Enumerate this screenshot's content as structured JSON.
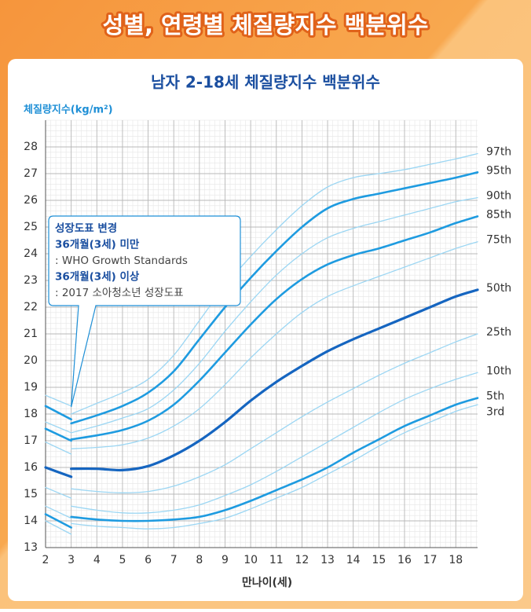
{
  "chart_data": {
    "type": "line",
    "banner": "성별, 연령별 체질량지수 백분위수",
    "title": "남자 2-18세 체질량지수 백분위수",
    "y_label": "체질량지수(kg/m²)",
    "x_label": "만나이(세)",
    "annotation": [
      {
        "text": "성장도표 변경",
        "bold": true
      },
      {
        "text": "36개월(3세) 미만",
        "bold": true
      },
      {
        "text": ": WHO Growth Standards",
        "bold": false
      },
      {
        "text": "36개월(3세) 이상",
        "bold": true
      },
      {
        "text": ": 2017 소아청소년 성장도표",
        "bold": false
      }
    ],
    "x": [
      2,
      3,
      null,
      3,
      4,
      5,
      6,
      7,
      8,
      9,
      10,
      11,
      12,
      13,
      14,
      15,
      16,
      17,
      18,
      18.85
    ],
    "xlim": [
      2,
      18.85
    ],
    "xticks": [
      2,
      3,
      4,
      5,
      6,
      7,
      8,
      9,
      10,
      11,
      12,
      13,
      14,
      15,
      16,
      17,
      18
    ],
    "ylim": [
      13,
      29
    ],
    "yticks": [
      13,
      14,
      15,
      16,
      17,
      18,
      19,
      20,
      21,
      22,
      23,
      24,
      25,
      26,
      27,
      28
    ],
    "grid": true,
    "series": [
      {
        "name": "97th",
        "color": "#9bd6f3",
        "linewidth": 1.3,
        "values": [
          18.7,
          18.3,
          null,
          18.0,
          18.4,
          18.8,
          19.3,
          20.2,
          21.5,
          22.8,
          23.9,
          24.9,
          25.8,
          26.5,
          26.85,
          27.0,
          27.15,
          27.35,
          27.55,
          27.75
        ]
      },
      {
        "name": "95th",
        "color": "#1e9be0",
        "linewidth": 2.6,
        "values": [
          18.3,
          17.8,
          null,
          17.65,
          17.95,
          18.3,
          18.8,
          19.6,
          20.8,
          22.0,
          23.1,
          24.1,
          25.0,
          25.7,
          26.05,
          26.25,
          26.45,
          26.65,
          26.85,
          27.05
        ]
      },
      {
        "name": "90th",
        "color": "#9bd6f3",
        "linewidth": 1.3,
        "values": [
          17.7,
          17.3,
          null,
          17.3,
          17.55,
          17.85,
          18.2,
          18.9,
          19.9,
          21.1,
          22.2,
          23.2,
          24.0,
          24.6,
          24.95,
          25.2,
          25.45,
          25.7,
          25.95,
          26.1
        ]
      },
      {
        "name": "85th",
        "color": "#1e9be0",
        "linewidth": 2.6,
        "values": [
          17.45,
          17.0,
          null,
          17.05,
          17.2,
          17.4,
          17.75,
          18.35,
          19.25,
          20.3,
          21.35,
          22.3,
          23.05,
          23.6,
          23.95,
          24.2,
          24.5,
          24.8,
          25.15,
          25.4
        ]
      },
      {
        "name": "75th",
        "color": "#9bd6f3",
        "linewidth": 1.3,
        "values": [
          16.95,
          16.5,
          null,
          16.7,
          16.75,
          16.85,
          17.1,
          17.55,
          18.2,
          19.1,
          20.1,
          21.0,
          21.8,
          22.4,
          22.8,
          23.15,
          23.5,
          23.85,
          24.2,
          24.45
        ]
      },
      {
        "name": "50th",
        "color": "#1565c0",
        "linewidth": 3.2,
        "values": [
          16.0,
          15.65,
          null,
          15.95,
          15.95,
          15.9,
          16.05,
          16.45,
          17.0,
          17.7,
          18.5,
          19.2,
          19.8,
          20.35,
          20.8,
          21.2,
          21.6,
          22.0,
          22.4,
          22.65
        ]
      },
      {
        "name": "25th",
        "color": "#9bd6f3",
        "linewidth": 1.3,
        "values": [
          15.25,
          14.85,
          null,
          15.2,
          15.1,
          15.05,
          15.1,
          15.3,
          15.65,
          16.1,
          16.7,
          17.3,
          17.9,
          18.45,
          18.95,
          19.45,
          19.9,
          20.3,
          20.7,
          21.0
        ]
      },
      {
        "name": "10th",
        "color": "#9bd6f3",
        "linewidth": 1.3,
        "values": [
          14.55,
          14.1,
          null,
          14.55,
          14.4,
          14.3,
          14.3,
          14.4,
          14.6,
          14.95,
          15.35,
          15.85,
          16.4,
          16.95,
          17.5,
          18.05,
          18.55,
          18.95,
          19.3,
          19.55
        ]
      },
      {
        "name": "5th",
        "color": "#1e9be0",
        "linewidth": 2.6,
        "values": [
          14.25,
          13.75,
          null,
          14.15,
          14.05,
          14.0,
          14.0,
          14.05,
          14.15,
          14.4,
          14.75,
          15.15,
          15.55,
          16.0,
          16.55,
          17.05,
          17.55,
          17.95,
          18.35,
          18.6
        ]
      },
      {
        "name": "3rd",
        "color": "#9bd6f3",
        "linewidth": 1.3,
        "values": [
          14.0,
          13.5,
          null,
          13.9,
          13.8,
          13.75,
          13.7,
          13.75,
          13.9,
          14.1,
          14.45,
          14.85,
          15.25,
          15.75,
          16.25,
          16.8,
          17.3,
          17.7,
          18.1,
          18.35
        ]
      }
    ]
  }
}
